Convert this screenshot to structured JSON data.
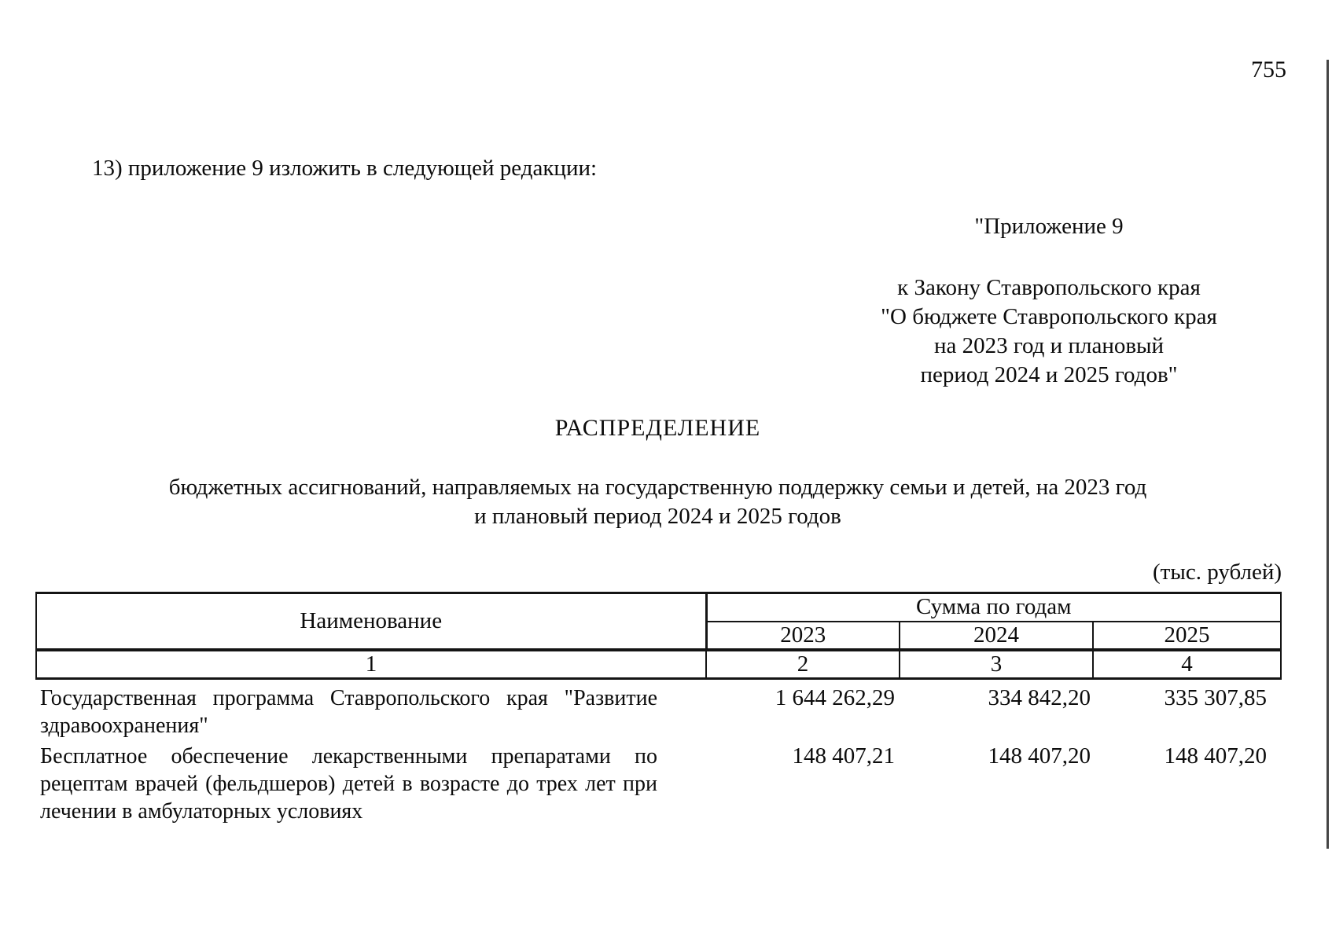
{
  "page": {
    "number": "755"
  },
  "intro": {
    "text": "13) приложение 9 изложить в следующей редакции:"
  },
  "appendix": {
    "title": "\"Приложение 9",
    "lines": [
      "к Закону Ставропольского края",
      "\"О бюджете Ставропольского края",
      "на 2023 год и плановый",
      "период 2024 и 2025 годов\""
    ]
  },
  "heading": {
    "title": "РАСПРЕДЕЛЕНИЕ",
    "subtitle_lines": [
      "бюджетных ассигнований, направляемых на государственную поддержку семьи и детей, на 2023 год",
      "и плановый период 2024 и 2025 годов"
    ]
  },
  "table": {
    "units_note": "(тыс. рублей)",
    "header": {
      "name_column": "Наименование",
      "group_column": "Сумма по годам",
      "years": [
        "2023",
        "2024",
        "2025"
      ],
      "column_numbers": [
        "1",
        "2",
        "3",
        "4"
      ]
    },
    "rows": [
      {
        "name": "Государственная программа Ставропольского края \"Развитие здравоохранения\"",
        "values": [
          "1 644 262,29",
          "334 842,20",
          "335 307,85"
        ]
      },
      {
        "name": "Бесплатное обеспечение лекарственными препаратами по рецептам врачей (фельдшеров) детей в возрасте до трех лет при лечении в амбулаторных условиях",
        "values": [
          "148 407,21",
          "148 407,20",
          "148 407,20"
        ]
      }
    ]
  }
}
